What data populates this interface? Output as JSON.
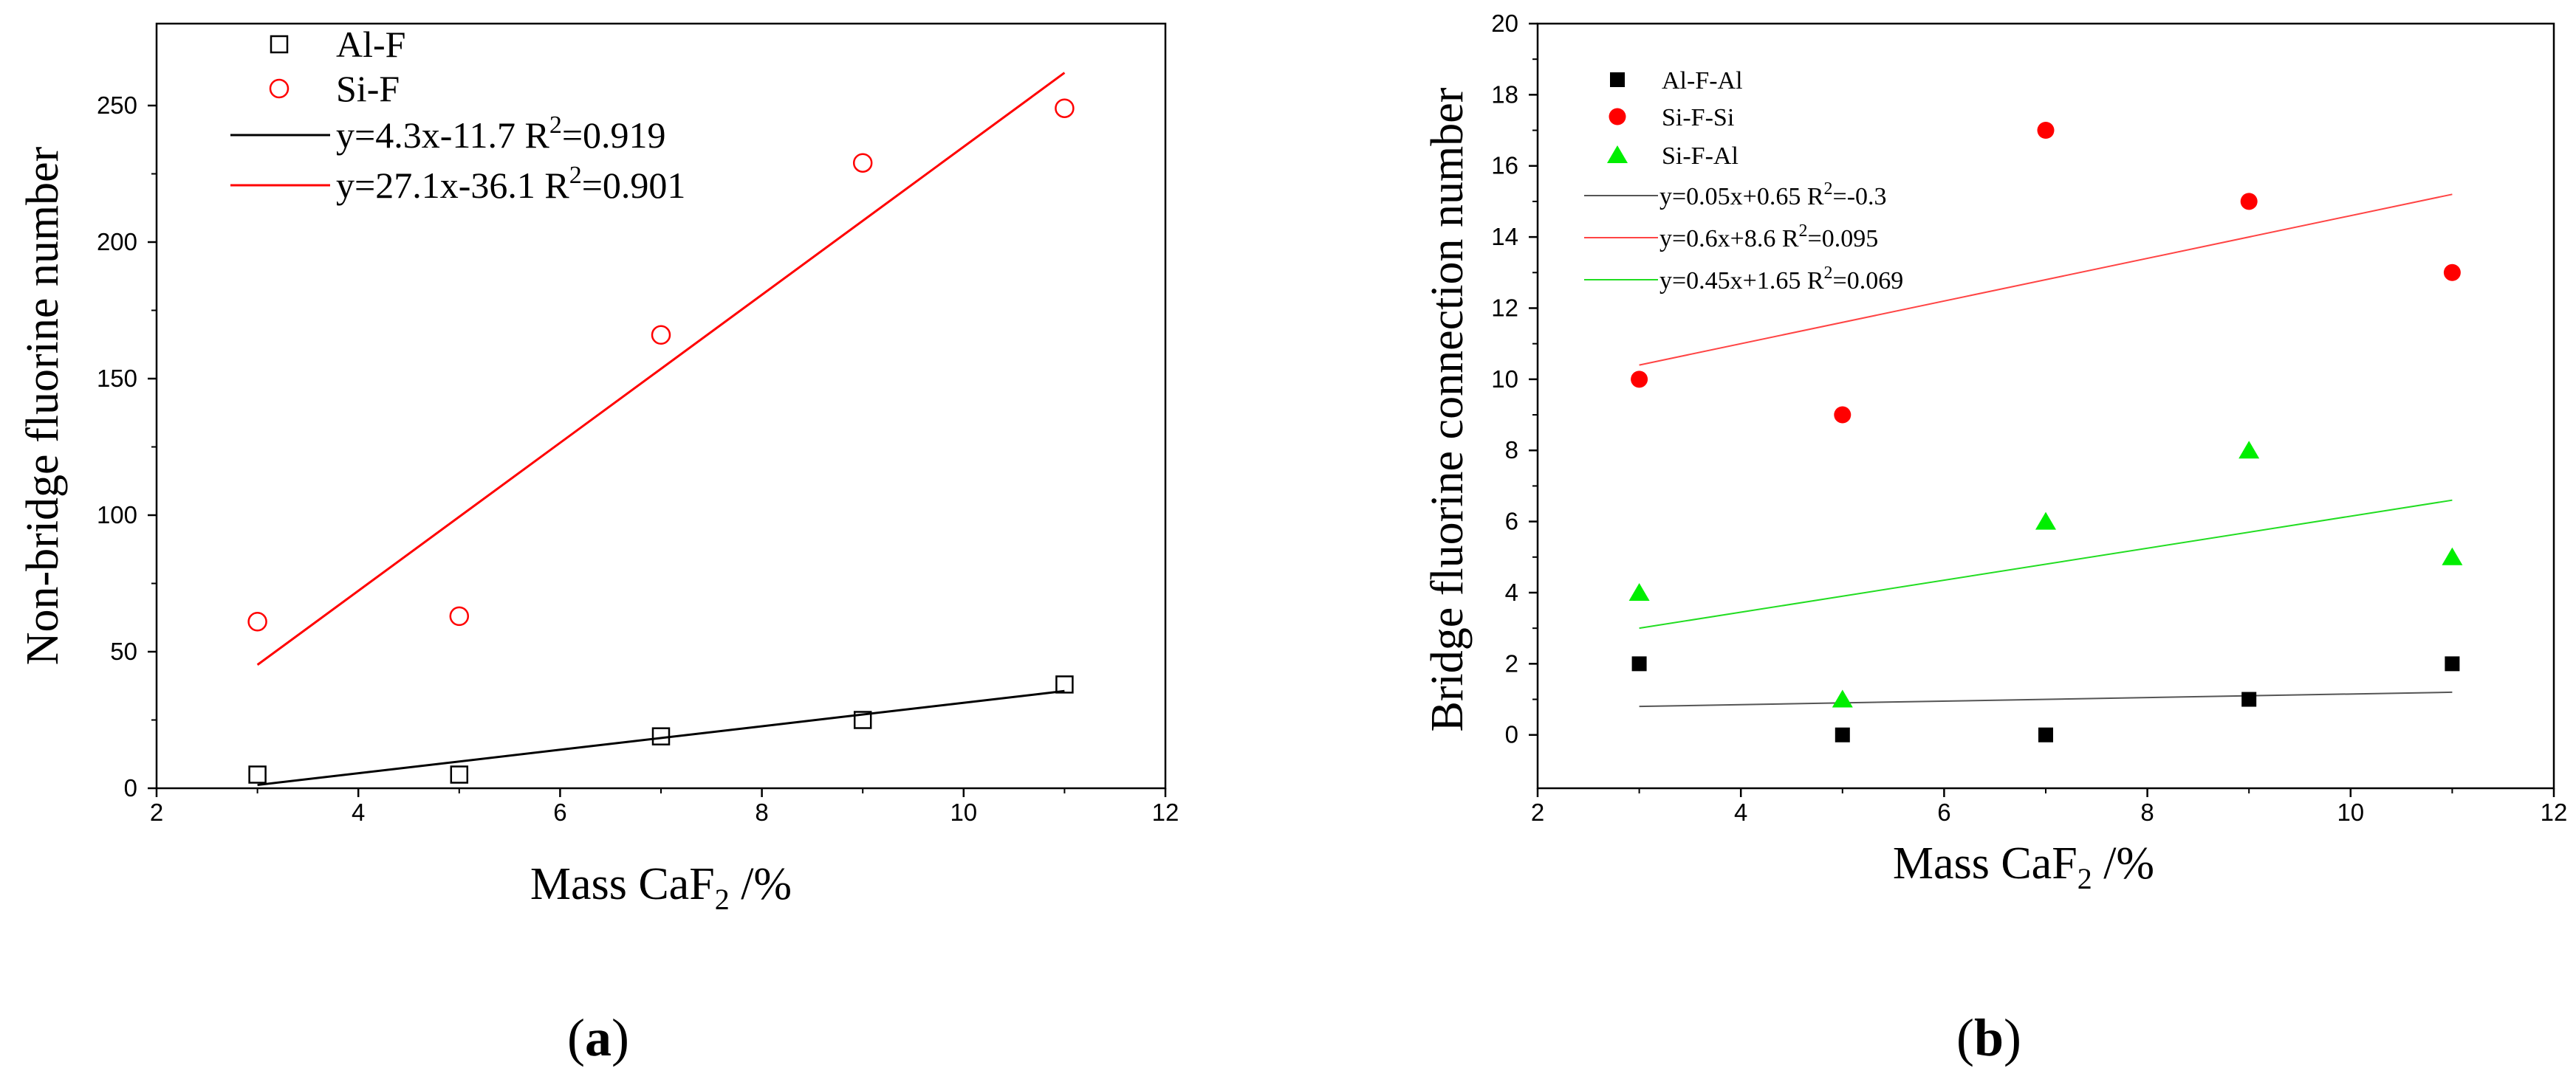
{
  "chart_data": [
    {
      "type": "scatter",
      "panel_label": "a",
      "xlabel": "Mass CaF",
      "xlabel_sub": "2",
      "xlabel_suffix": " /%",
      "ylabel": "Non-bridge fluorine number",
      "xlim": [
        2,
        12
      ],
      "ylim": [
        0,
        280
      ],
      "xticks": [
        2,
        4,
        6,
        8,
        10,
        12
      ],
      "yticks": [
        0,
        50,
        100,
        150,
        200,
        250
      ],
      "x": [
        3,
        5,
        7,
        9,
        11
      ],
      "series": [
        {
          "name": "Al-F",
          "marker": "open-square",
          "color": "#000000",
          "values": [
            5,
            5,
            19,
            25,
            38
          ]
        },
        {
          "name": "Si-F",
          "marker": "open-circle",
          "color": "#ff0000",
          "values": [
            61,
            63,
            166,
            229,
            249
          ]
        }
      ],
      "fits": [
        {
          "label": "y=4.3x-11.7   R",
          "sup": "2",
          "tail": "=0.919",
          "color": "#000000",
          "slope": 4.3,
          "intercept": -11.7,
          "x_range": [
            3,
            11
          ]
        },
        {
          "label": "y=27.1x-36.1 R",
          "sup": "2",
          "tail": "=0.901",
          "color": "#ff0000",
          "slope": 27.1,
          "intercept": -36.1,
          "x_range": [
            3,
            11
          ]
        }
      ]
    },
    {
      "type": "scatter",
      "panel_label": "b",
      "xlabel": "Mass CaF",
      "xlabel_sub": "2",
      "xlabel_suffix": " /%",
      "ylabel": "Bridge fluorine connection number",
      "xlim": [
        2,
        12
      ],
      "ylim": [
        -1.5,
        20
      ],
      "xticks": [
        2,
        4,
        6,
        8,
        10,
        12
      ],
      "yticks": [
        0,
        2,
        4,
        6,
        8,
        10,
        12,
        14,
        16,
        18,
        20
      ],
      "x": [
        3,
        5,
        7,
        9,
        11
      ],
      "series": [
        {
          "name": "Al-F-Al",
          "marker": "filled-square",
          "color": "#000000",
          "values": [
            2,
            0,
            0,
            1,
            2
          ]
        },
        {
          "name": "Si-F-Si",
          "marker": "filled-circle",
          "color": "#ff0000",
          "values": [
            10,
            9,
            17,
            15,
            13
          ]
        },
        {
          "name": "Si-F-Al",
          "marker": "filled-triangle",
          "color": "#00ee00",
          "values": [
            4,
            1,
            6,
            8,
            5
          ]
        }
      ],
      "fits": [
        {
          "label": "y=0.05x+0.65 R",
          "sup": "2",
          "tail": "=-0.3",
          "color": "#555555",
          "slope": 0.05,
          "intercept": 0.65,
          "x_range": [
            3,
            11
          ]
        },
        {
          "label": "y=0.6x+8.6     R",
          "sup": "2",
          "tail": "=0.095",
          "color": "#ff4444",
          "slope": 0.6,
          "intercept": 8.6,
          "x_range": [
            3,
            11
          ]
        },
        {
          "label": "y=0.45x+1.65 R",
          "sup": "2",
          "tail": "=0.069",
          "color": "#22dd22",
          "slope": 0.45,
          "intercept": 1.65,
          "x_range": [
            3,
            11
          ]
        }
      ]
    }
  ]
}
